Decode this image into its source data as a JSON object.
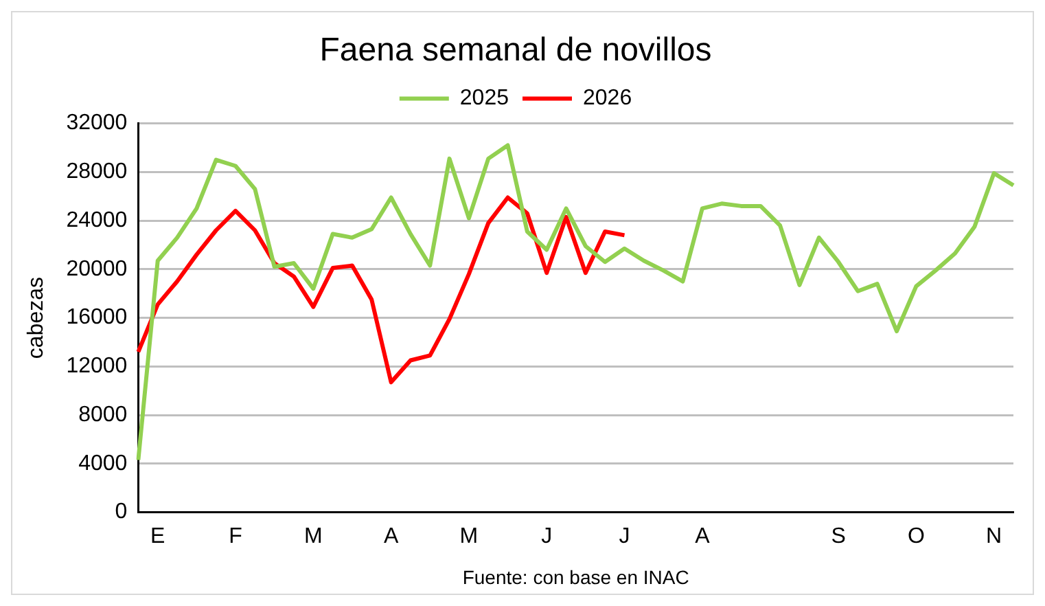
{
  "chart_data": {
    "type": "line",
    "title": "Faena semanal de novillos",
    "ylabel": "cabezas",
    "categories": [
      null,
      "E",
      null,
      null,
      null,
      "F",
      null,
      null,
      null,
      "M",
      null,
      null,
      null,
      "A",
      null,
      null,
      null,
      "M",
      null,
      null,
      null,
      "J",
      null,
      null,
      null,
      "J",
      null,
      null,
      null,
      "A",
      null,
      null,
      null,
      null,
      null,
      null,
      "S",
      null,
      null,
      null,
      "O",
      null,
      null,
      null,
      "N",
      null
    ],
    "series": [
      {
        "name": "2025",
        "color": "#92d050",
        "values": [
          4300,
          20700,
          22600,
          25000,
          29000,
          28500,
          26600,
          20200,
          20500,
          18400,
          22900,
          22600,
          23300,
          25900,
          22900,
          20300,
          29100,
          24200,
          29100,
          30200,
          23100,
          21600,
          25000,
          21900,
          20600,
          21700,
          20700,
          19900,
          19000,
          25000,
          25400,
          25200,
          25200,
          23600,
          18700,
          22600,
          20600,
          18200,
          18800,
          14900,
          18600,
          19900,
          21300,
          23500,
          27900,
          26900
        ]
      },
      {
        "name": "2026",
        "color": "#ff0000",
        "values": [
          13200,
          17100,
          19000,
          21200,
          23200,
          24800,
          23200,
          20500,
          19400,
          16900,
          20100,
          20300,
          17500,
          10700,
          12500,
          12900,
          15900,
          19600,
          23800,
          25900,
          24600,
          19700,
          24300,
          19700,
          23100,
          22800,
          null,
          null,
          null,
          null,
          null,
          null,
          null,
          null,
          null,
          null,
          null,
          null,
          null,
          null,
          null,
          null,
          null,
          null,
          null,
          null
        ]
      }
    ],
    "ylim": [
      0,
      32000
    ],
    "yticks": [
      0,
      4000,
      8000,
      12000,
      16000,
      20000,
      24000,
      28000,
      32000
    ],
    "grid": "y",
    "legend": "top",
    "marker": "none",
    "line_style": "solid",
    "annotations": [
      "Fuente: con base en INAC"
    ]
  }
}
